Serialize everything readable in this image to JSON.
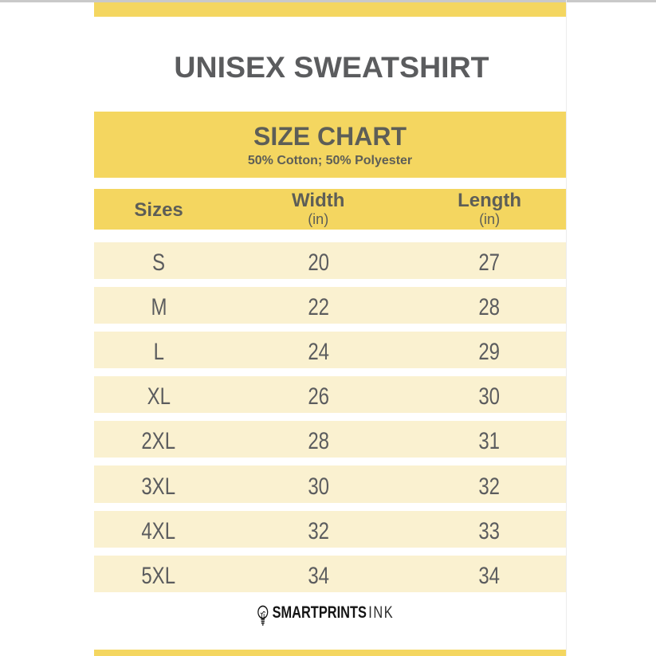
{
  "header": {
    "title": "UNISEX SWEATSHIRT"
  },
  "size_chart": {
    "heading": "SIZE CHART",
    "subheading": "50% Cotton; 50% Polyester"
  },
  "table": {
    "columns": [
      {
        "label": "Sizes",
        "unit": ""
      },
      {
        "label": "Width",
        "unit": "(in)"
      },
      {
        "label": "Length",
        "unit": "(in)"
      }
    ],
    "rows": [
      {
        "size": "S",
        "width": "20",
        "length": "27"
      },
      {
        "size": "M",
        "width": "22",
        "length": "28"
      },
      {
        "size": "L",
        "width": "24",
        "length": "29"
      },
      {
        "size": "XL",
        "width": "26",
        "length": "30"
      },
      {
        "size": "2XL",
        "width": "28",
        "length": "31"
      },
      {
        "size": "3XL",
        "width": "30",
        "length": "32"
      },
      {
        "size": "4XL",
        "width": "32",
        "length": "33"
      },
      {
        "size": "5XL",
        "width": "34",
        "length": "34"
      }
    ]
  },
  "footer": {
    "brand_bold": "SMARTPRINTS",
    "brand_light": "INK"
  },
  "colors": {
    "accent_yellow": "#F4D660",
    "row_cream": "#FAF1D0",
    "text_gray": "#5B5C5E"
  }
}
